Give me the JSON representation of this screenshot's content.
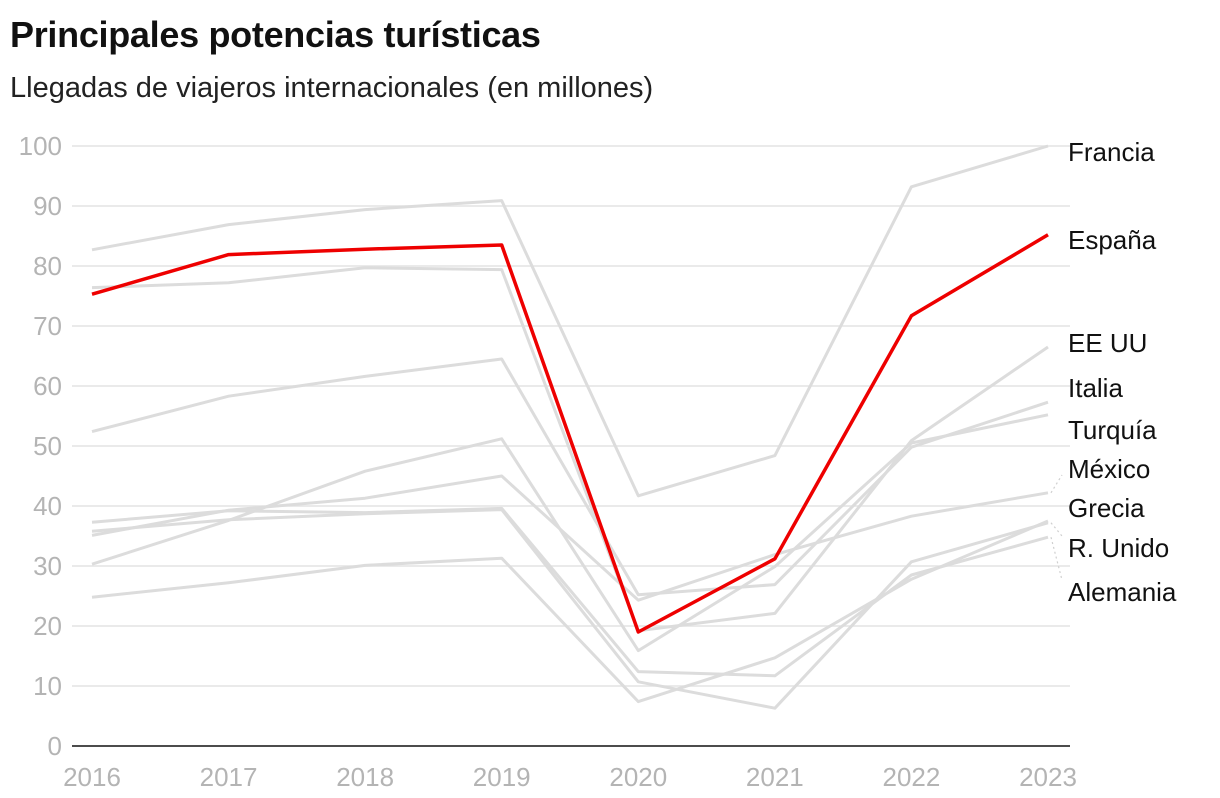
{
  "chart_data": {
    "type": "line",
    "title": "Principales potencias turísticas",
    "subtitle": "Llegadas de viajeros internacionales (en millones)",
    "xlabel": "",
    "ylabel": "",
    "categories": [
      "2016",
      "2017",
      "2018",
      "2019",
      "2020",
      "2021",
      "2022",
      "2023"
    ],
    "ylim": [
      0,
      100
    ],
    "yticks": [
      0,
      10,
      20,
      30,
      40,
      50,
      60,
      70,
      80,
      90,
      100
    ],
    "highlight": "España",
    "colors": {
      "highlight": "#ee0000",
      "other": "#dcdcdc"
    },
    "series": [
      {
        "name": "Francia",
        "values": [
          82.7,
          86.9,
          89.4,
          90.9,
          41.7,
          48.4,
          93.2,
          100.0
        ]
      },
      {
        "name": "EE UU",
        "values": [
          76.4,
          77.2,
          79.7,
          79.4,
          19.2,
          22.1,
          50.9,
          66.5
        ]
      },
      {
        "name": "Italia",
        "values": [
          52.4,
          58.3,
          61.6,
          64.5,
          25.2,
          26.9,
          49.8,
          57.3
        ]
      },
      {
        "name": "Turquía",
        "values": [
          30.3,
          37.6,
          45.8,
          51.2,
          15.9,
          29.9,
          50.5,
          55.2
        ]
      },
      {
        "name": "México",
        "values": [
          35.1,
          39.3,
          41.3,
          45.0,
          24.3,
          31.9,
          38.3,
          42.2
        ]
      },
      {
        "name": "Grecia",
        "values": [
          24.8,
          27.2,
          30.1,
          31.3,
          7.4,
          14.7,
          27.8,
          37.5
        ]
      },
      {
        "name": "R. Unido",
        "values": [
          35.8,
          37.7,
          38.7,
          39.4,
          10.7,
          6.3,
          30.7,
          37.2
        ]
      },
      {
        "name": "Alemania",
        "values": [
          37.3,
          39.2,
          38.9,
          39.6,
          12.4,
          11.7,
          28.5,
          34.8
        ]
      },
      {
        "name": "España",
        "values": [
          75.3,
          81.9,
          82.8,
          83.5,
          19.0,
          31.2,
          71.7,
          85.2
        ]
      }
    ]
  }
}
